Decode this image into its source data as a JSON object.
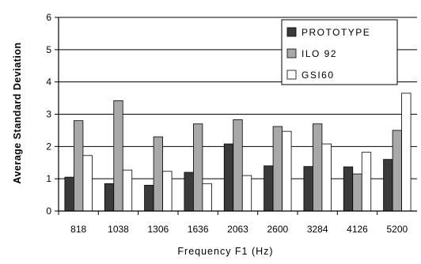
{
  "chart_data": {
    "type": "bar",
    "title": "",
    "xlabel": "Frequency F1 (Hz)",
    "ylabel": "Average Standard Deviation",
    "ylim": [
      0,
      6
    ],
    "yticks": [
      "0",
      "1",
      "2",
      "3",
      "4",
      "5",
      "6"
    ],
    "grid": true,
    "legend_position": "top-right",
    "categories": [
      "818",
      "1038",
      "1306",
      "1636",
      "2063",
      "2600",
      "3284",
      "4126",
      "5200"
    ],
    "series": [
      {
        "name": "PROTOTYPE",
        "color": "#3a3a3a",
        "values": [
          1.05,
          0.85,
          0.8,
          1.2,
          2.08,
          1.4,
          1.38,
          1.37,
          1.6
        ]
      },
      {
        "name": "ILO 92",
        "color": "#a8a8a8",
        "values": [
          2.8,
          3.42,
          2.3,
          2.7,
          2.83,
          2.62,
          2.7,
          1.15,
          2.5
        ]
      },
      {
        "name": "GSI60",
        "color": "#ffffff",
        "values": [
          1.72,
          1.27,
          1.23,
          0.85,
          1.1,
          2.47,
          2.08,
          1.82,
          3.65
        ]
      }
    ]
  }
}
